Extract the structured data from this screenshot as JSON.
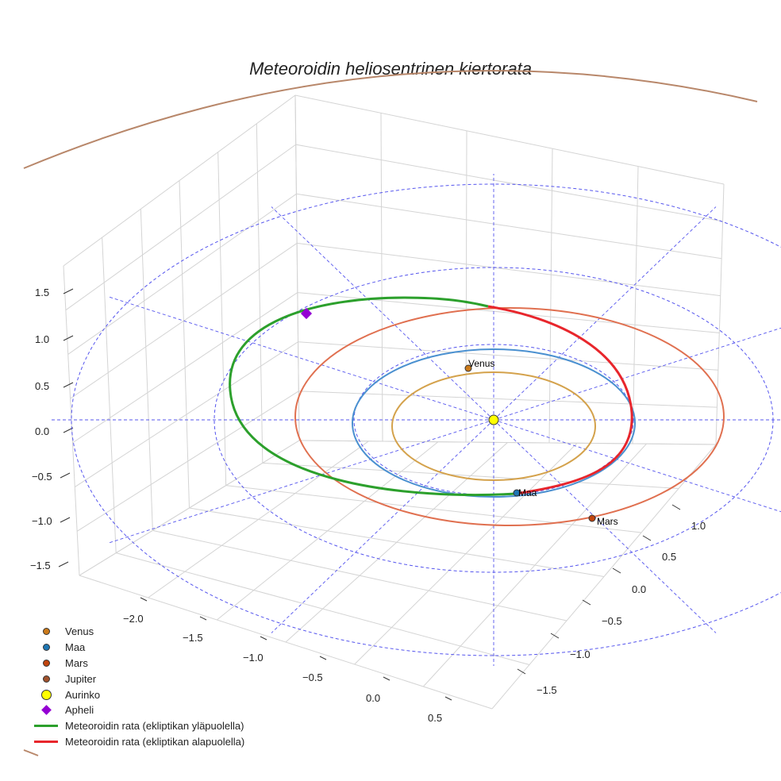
{
  "title": "Meteoroidin heliosentrinen kiertorata",
  "chart_data": {
    "type": "line",
    "projection": "3d",
    "title": "Meteoroidin heliosentrinen kiertorata",
    "x_ticks": [
      "−2.0",
      "−1.5",
      "−1.0",
      "−0.5",
      "0.0",
      "0.5"
    ],
    "y_ticks": [
      "−1.5",
      "−1.0",
      "−0.5",
      "0.0",
      "0.5",
      "1.0"
    ],
    "z_ticks": [
      "1.5",
      "1.0",
      "0.5",
      "0.0",
      "−0.5",
      "−1.0",
      "−1.5"
    ],
    "z_range": [
      -1.5,
      1.5
    ],
    "orbit_semi_major_axes_au": {
      "Venus": 0.72,
      "Maa": 1.0,
      "Mars": 1.52,
      "Jupiter": 5.2
    },
    "reference_circles_au": [
      1.0,
      2.0,
      3.0
    ],
    "meteoroid_orbit": {
      "perihelion_au": 0.98,
      "aphelion_au": 2.0,
      "segments": [
        "above ecliptic",
        "below ecliptic"
      ]
    },
    "point_labels": {
      "venus": "Venus",
      "maa": "Maa",
      "mars": "Mars"
    },
    "legend": [
      {
        "key": "venus",
        "label": "Venus",
        "marker": "dot",
        "color": "#cc7a1a"
      },
      {
        "key": "maa",
        "label": "Maa",
        "marker": "dot",
        "color": "#1f77b4"
      },
      {
        "key": "mars",
        "label": "Mars",
        "marker": "dot",
        "color": "#c1440e"
      },
      {
        "key": "jupiter",
        "label": "Jupiter",
        "marker": "dot",
        "color": "#a0522d"
      },
      {
        "key": "aurinko",
        "label": "Aurinko",
        "marker": "bigdot",
        "color": "#ffff00"
      },
      {
        "key": "apheli",
        "label": "Apheli",
        "marker": "diamond",
        "color": "#9400d3"
      },
      {
        "key": "above",
        "label": "Meteoroidin rata (ekliptikan yläpuolella)",
        "marker": "line",
        "color": "#2ca02c"
      },
      {
        "key": "below",
        "label": "Meteoroidin rata (ekliptikan alapuolella)",
        "marker": "line",
        "color": "#e8262c"
      }
    ],
    "colors": {
      "venus_orbit": "#d4a24c",
      "earth_orbit": "#4a90d0",
      "mars_orbit": "#e07050",
      "jupiter_orbit": "#b8876a",
      "reference": "#5555ee",
      "grid": "#d4d4d4"
    }
  }
}
